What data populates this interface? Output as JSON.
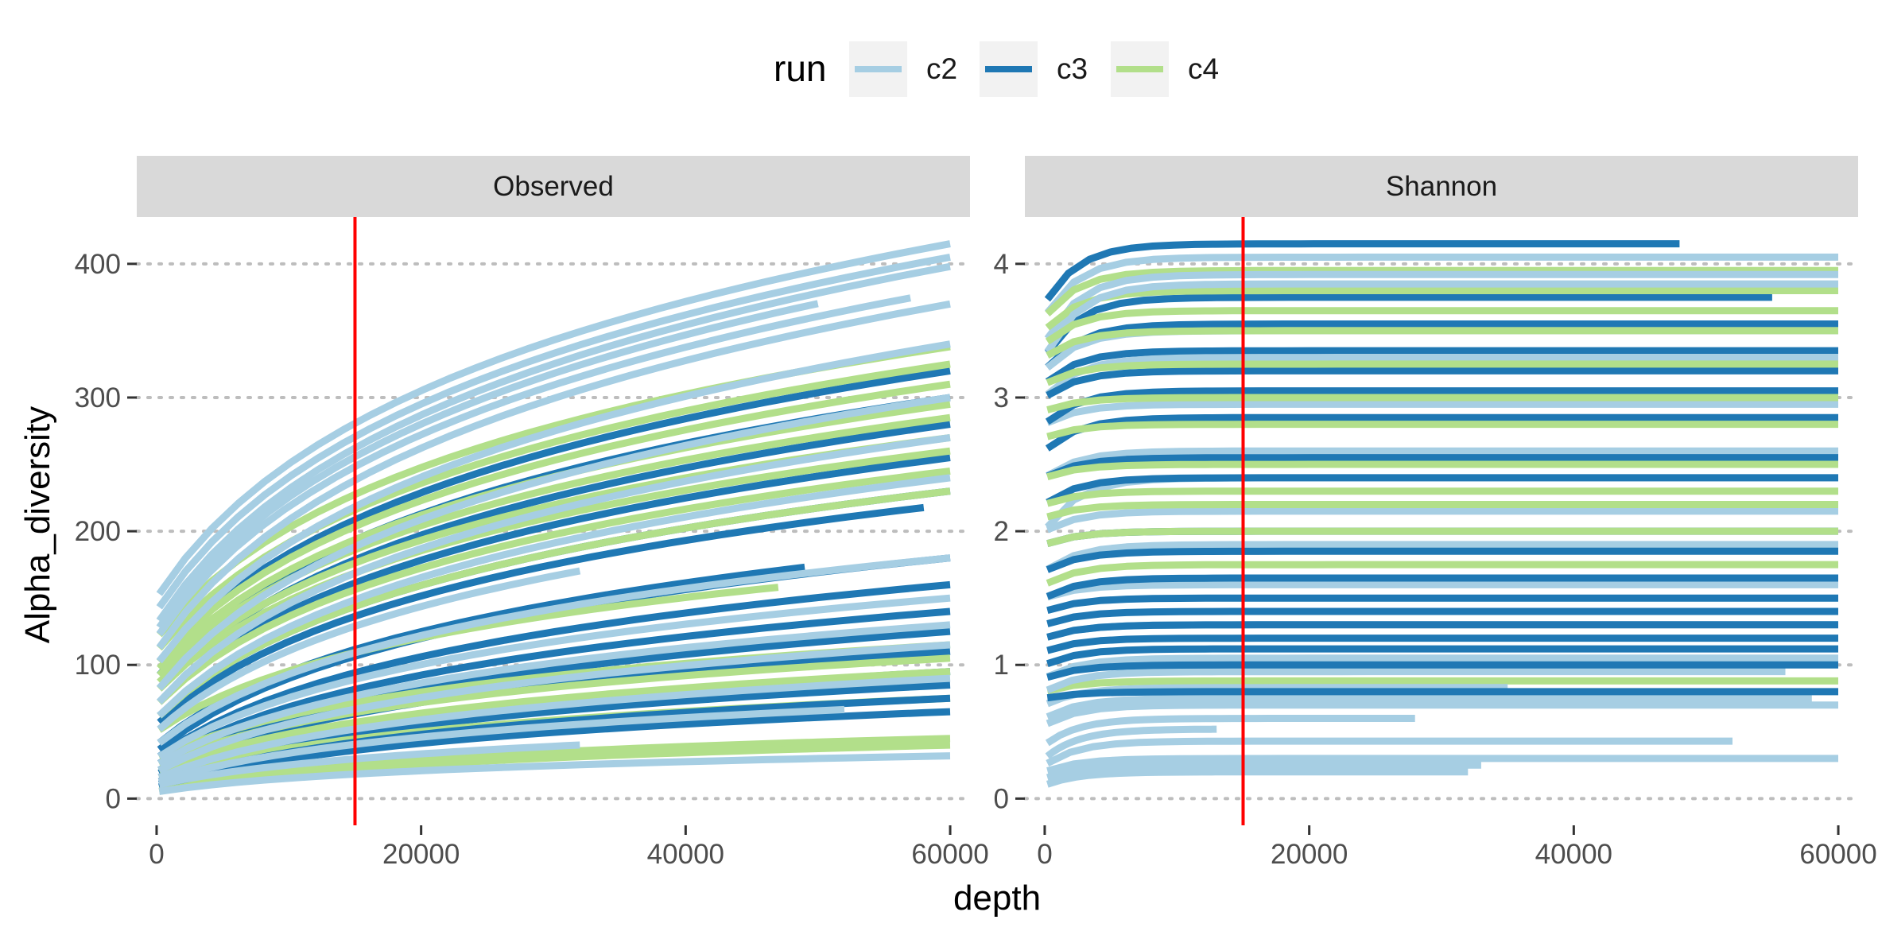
{
  "chart_data": {
    "type": "line",
    "xlabel": "depth",
    "ylabel": "Alpha_diversity",
    "legend": {
      "title": "run",
      "position": "top",
      "entries": [
        {
          "name": "c2",
          "color": "#A6CEE3"
        },
        {
          "name": "c3",
          "color": "#1F78B4"
        },
        {
          "name": "c4",
          "color": "#B2DF8A"
        }
      ]
    },
    "reference_line": {
      "x": 15000,
      "color": "#FF0000"
    },
    "grid": "horizontal dotted",
    "panels": [
      {
        "title": "Observed",
        "xlim": [
          -1500,
          61500
        ],
        "ylim": [
          -20,
          435
        ],
        "xticks": [
          0,
          20000,
          40000,
          60000
        ],
        "yticks": [
          0,
          100,
          200,
          300,
          400
        ],
        "series_groups": [
          {
            "run": "c2",
            "curves": [
              {
                "start": 150,
                "end": 415,
                "max_x": 60000
              },
              {
                "start": 140,
                "end": 405,
                "max_x": 60000
              },
              {
                "start": 130,
                "end": 398,
                "max_x": 60000
              },
              {
                "start": 125,
                "end": 390,
                "max_x": 50000
              },
              {
                "start": 120,
                "end": 380,
                "max_x": 57000
              },
              {
                "start": 110,
                "end": 370,
                "max_x": 60000
              },
              {
                "start": 100,
                "end": 340,
                "max_x": 60000
              },
              {
                "start": 80,
                "end": 300,
                "max_x": 60000
              },
              {
                "start": 70,
                "end": 270,
                "max_x": 60000
              },
              {
                "start": 60,
                "end": 240,
                "max_x": 60000
              },
              {
                "start": 50,
                "end": 210,
                "max_x": 32000
              },
              {
                "start": 40,
                "end": 180,
                "max_x": 60000
              },
              {
                "start": 30,
                "end": 150,
                "max_x": 60000
              },
              {
                "start": 25,
                "end": 130,
                "max_x": 60000
              },
              {
                "start": 20,
                "end": 115,
                "max_x": 60000
              },
              {
                "start": 15,
                "end": 90,
                "max_x": 60000
              },
              {
                "start": 12,
                "end": 70,
                "max_x": 52000
              },
              {
                "start": 10,
                "end": 50,
                "max_x": 32000
              },
              {
                "start": 5,
                "end": 32,
                "max_x": 60000
              }
            ]
          },
          {
            "run": "c3",
            "curves": [
              {
                "start": 100,
                "end": 320,
                "max_x": 60000
              },
              {
                "start": 90,
                "end": 300,
                "max_x": 60000
              },
              {
                "start": 80,
                "end": 280,
                "max_x": 60000
              },
              {
                "start": 70,
                "end": 255,
                "max_x": 60000
              },
              {
                "start": 60,
                "end": 230,
                "max_x": 60000
              },
              {
                "start": 55,
                "end": 220,
                "max_x": 58000
              },
              {
                "start": 40,
                "end": 185,
                "max_x": 49000
              },
              {
                "start": 35,
                "end": 180,
                "max_x": 60000
              },
              {
                "start": 30,
                "end": 160,
                "max_x": 60000
              },
              {
                "start": 25,
                "end": 140,
                "max_x": 60000
              },
              {
                "start": 20,
                "end": 125,
                "max_x": 60000
              },
              {
                "start": 18,
                "end": 110,
                "max_x": 60000
              },
              {
                "start": 15,
                "end": 95,
                "max_x": 60000
              },
              {
                "start": 12,
                "end": 85,
                "max_x": 60000
              },
              {
                "start": 10,
                "end": 75,
                "max_x": 60000
              },
              {
                "start": 8,
                "end": 65,
                "max_x": 60000
              }
            ]
          },
          {
            "run": "c4",
            "curves": [
              {
                "start": 120,
                "end": 338,
                "max_x": 60000
              },
              {
                "start": 110,
                "end": 325,
                "max_x": 60000
              },
              {
                "start": 100,
                "end": 310,
                "max_x": 60000
              },
              {
                "start": 95,
                "end": 295,
                "max_x": 60000
              },
              {
                "start": 90,
                "end": 285,
                "max_x": 60000
              },
              {
                "start": 85,
                "end": 270,
                "max_x": 60000
              },
              {
                "start": 80,
                "end": 260,
                "max_x": 60000
              },
              {
                "start": 70,
                "end": 245,
                "max_x": 60000
              },
              {
                "start": 60,
                "end": 230,
                "max_x": 60000
              },
              {
                "start": 50,
                "end": 170,
                "max_x": 47000
              },
              {
                "start": 30,
                "end": 115,
                "max_x": 60000
              },
              {
                "start": 25,
                "end": 105,
                "max_x": 60000
              },
              {
                "start": 20,
                "end": 95,
                "max_x": 60000
              },
              {
                "start": 15,
                "end": 75,
                "max_x": 60000
              },
              {
                "start": 8,
                "end": 45,
                "max_x": 60000
              },
              {
                "start": 5,
                "end": 40,
                "max_x": 60000
              }
            ]
          }
        ]
      },
      {
        "title": "Shannon",
        "xlim": [
          -1500,
          61500
        ],
        "ylim": [
          -0.2,
          4.35
        ],
        "xticks": [
          0,
          20000,
          40000,
          60000
        ],
        "yticks": [
          0,
          1,
          2,
          3,
          4
        ],
        "series_groups": [
          {
            "run": "c2",
            "curves": [
              {
                "start": 3.6,
                "end": 4.05,
                "max_x": 60000
              },
              {
                "start": 3.4,
                "end": 3.92,
                "max_x": 60000
              },
              {
                "start": 3.3,
                "end": 3.85,
                "max_x": 60000
              },
              {
                "start": 3.2,
                "end": 3.5,
                "max_x": 60000
              },
              {
                "start": 3.0,
                "end": 3.3,
                "max_x": 60000
              },
              {
                "start": 2.8,
                "end": 2.95,
                "max_x": 60000
              },
              {
                "start": 2.4,
                "end": 2.6,
                "max_x": 60000
              },
              {
                "start": 2.0,
                "end": 2.4,
                "max_x": 60000
              },
              {
                "start": 2.0,
                "end": 2.15,
                "max_x": 60000
              },
              {
                "start": 1.7,
                "end": 1.9,
                "max_x": 60000
              },
              {
                "start": 1.5,
                "end": 1.6,
                "max_x": 60000
              },
              {
                "start": 1.2,
                "end": 1.3,
                "max_x": 60000
              },
              {
                "start": 0.9,
                "end": 1.05,
                "max_x": 60000
              },
              {
                "start": 0.8,
                "end": 0.95,
                "max_x": 56000
              },
              {
                "start": 0.7,
                "end": 0.83,
                "max_x": 35000
              },
              {
                "start": 0.6,
                "end": 0.75,
                "max_x": 58000
              },
              {
                "start": 0.55,
                "end": 0.7,
                "max_x": 60000
              },
              {
                "start": 0.4,
                "end": 0.6,
                "max_x": 28000
              },
              {
                "start": 0.3,
                "end": 0.52,
                "max_x": 13000
              },
              {
                "start": 0.25,
                "end": 0.43,
                "max_x": 52000
              },
              {
                "start": 0.2,
                "end": 0.3,
                "max_x": 60000
              },
              {
                "start": 0.15,
                "end": 0.25,
                "max_x": 33000
              },
              {
                "start": 0.1,
                "end": 0.2,
                "max_x": 32000
              }
            ]
          },
          {
            "run": "c3",
            "curves": [
              {
                "start": 3.7,
                "end": 4.15,
                "max_x": 48000
              },
              {
                "start": 3.3,
                "end": 3.75,
                "max_x": 55000
              },
              {
                "start": 3.2,
                "end": 3.55,
                "max_x": 60000
              },
              {
                "start": 3.1,
                "end": 3.35,
                "max_x": 60000
              },
              {
                "start": 3.0,
                "end": 3.2,
                "max_x": 60000
              },
              {
                "start": 2.8,
                "end": 3.05,
                "max_x": 60000
              },
              {
                "start": 2.6,
                "end": 2.85,
                "max_x": 60000
              },
              {
                "start": 2.4,
                "end": 2.55,
                "max_x": 60000
              },
              {
                "start": 2.2,
                "end": 2.4,
                "max_x": 60000
              },
              {
                "start": 1.9,
                "end": 2.0,
                "max_x": 60000
              },
              {
                "start": 1.7,
                "end": 1.85,
                "max_x": 60000
              },
              {
                "start": 1.5,
                "end": 1.65,
                "max_x": 60000
              },
              {
                "start": 1.4,
                "end": 1.5,
                "max_x": 60000
              },
              {
                "start": 1.3,
                "end": 1.4,
                "max_x": 60000
              },
              {
                "start": 1.2,
                "end": 1.3,
                "max_x": 60000
              },
              {
                "start": 1.1,
                "end": 1.2,
                "max_x": 60000
              },
              {
                "start": 1.0,
                "end": 1.12,
                "max_x": 60000
              },
              {
                "start": 0.9,
                "end": 1.0,
                "max_x": 60000
              },
              {
                "start": 0.75,
                "end": 0.8,
                "max_x": 60000
              }
            ]
          },
          {
            "run": "c4",
            "curves": [
              {
                "start": 3.6,
                "end": 3.95,
                "max_x": 60000
              },
              {
                "start": 3.5,
                "end": 3.8,
                "max_x": 60000
              },
              {
                "start": 3.4,
                "end": 3.65,
                "max_x": 60000
              },
              {
                "start": 3.3,
                "end": 3.5,
                "max_x": 60000
              },
              {
                "start": 3.1,
                "end": 3.25,
                "max_x": 60000
              },
              {
                "start": 2.9,
                "end": 3.0,
                "max_x": 60000
              },
              {
                "start": 2.7,
                "end": 2.8,
                "max_x": 60000
              },
              {
                "start": 2.4,
                "end": 2.5,
                "max_x": 60000
              },
              {
                "start": 2.2,
                "end": 2.3,
                "max_x": 60000
              },
              {
                "start": 2.1,
                "end": 2.2,
                "max_x": 60000
              },
              {
                "start": 1.9,
                "end": 2.0,
                "max_x": 60000
              },
              {
                "start": 1.6,
                "end": 1.75,
                "max_x": 60000
              },
              {
                "start": 0.8,
                "end": 0.88,
                "max_x": 60000
              }
            ]
          }
        ]
      }
    ]
  }
}
